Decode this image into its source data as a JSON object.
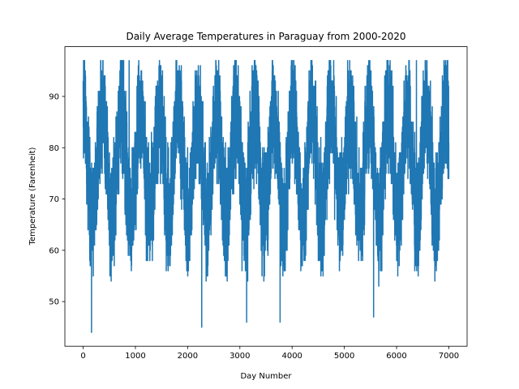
{
  "chart_data": {
    "type": "line",
    "title": "Daily Average Temperatures in Paraguay from 2000-2020",
    "xlabel": "Day Number",
    "ylabel": "Temperature (Farenheit)",
    "xlim": [
      -350,
      7350
    ],
    "ylim": [
      41.3,
      99.7
    ],
    "xticks": [
      0,
      1000,
      2000,
      3000,
      4000,
      5000,
      6000,
      7000
    ],
    "yticks": [
      50,
      60,
      70,
      80,
      90
    ],
    "grid": false,
    "legend": "none",
    "series": [
      {
        "color": "#1f77b4",
        "x_start": 0,
        "x_end": 7000,
        "n_points": 7001,
        "baseline_min": 65,
        "baseline_max": 86,
        "mean": 79,
        "period_days": 365,
        "noise_amplitude": 11,
        "y_min": 44,
        "y_max": 97,
        "notable_points": [
          {
            "x": 160,
            "y": 44
          },
          {
            "x": 2270,
            "y": 45
          },
          {
            "x": 3770,
            "y": 46
          },
          {
            "x": 3130,
            "y": 46
          },
          {
            "x": 5560,
            "y": 47
          },
          {
            "x": 880,
            "y": 97
          },
          {
            "x": 6380,
            "y": 97
          },
          {
            "x": 2550,
            "y": 96
          }
        ]
      }
    ]
  }
}
